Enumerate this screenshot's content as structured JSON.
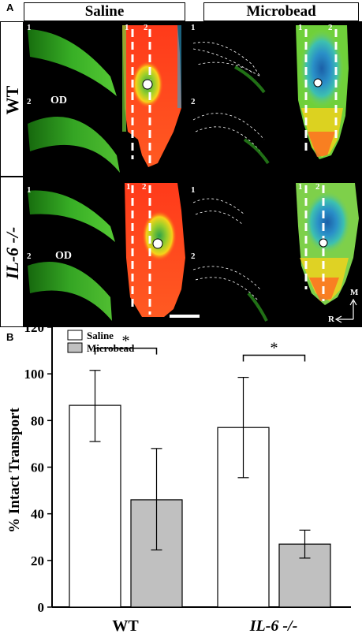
{
  "panel_a": {
    "letter": "A",
    "columns": [
      "Saline",
      "Microbead"
    ],
    "rows": [
      {
        "label": "WT",
        "italic": false
      },
      {
        "label": "IL-6 -/-",
        "italic": true
      }
    ],
    "section_numbers": [
      "1",
      "2"
    ],
    "od_label": "OD",
    "compass": {
      "up": "M",
      "left": "R"
    }
  },
  "panel_b": {
    "letter": "B"
  },
  "chart_data": {
    "type": "bar",
    "categories": [
      "WT",
      "IL-6 -/-"
    ],
    "categories_italic": [
      false,
      true
    ],
    "series": [
      {
        "name": "Saline",
        "values": [
          86.5,
          77
        ],
        "err_low": [
          71,
          55.5
        ],
        "err_high": [
          101.5,
          98.5
        ],
        "color": "#ffffff"
      },
      {
        "name": "Microbead",
        "values": [
          46,
          27
        ],
        "err_low": [
          24.5,
          21
        ],
        "err_high": [
          68,
          33
        ],
        "color": "#c0c0c0"
      }
    ],
    "ylabel": "% Intact Transport",
    "ylim": [
      0,
      120
    ],
    "yticks": [
      0,
      20,
      40,
      60,
      80,
      100,
      120
    ],
    "significance": [
      "*",
      "*"
    ],
    "legend_position": "top-left",
    "grid": false
  }
}
